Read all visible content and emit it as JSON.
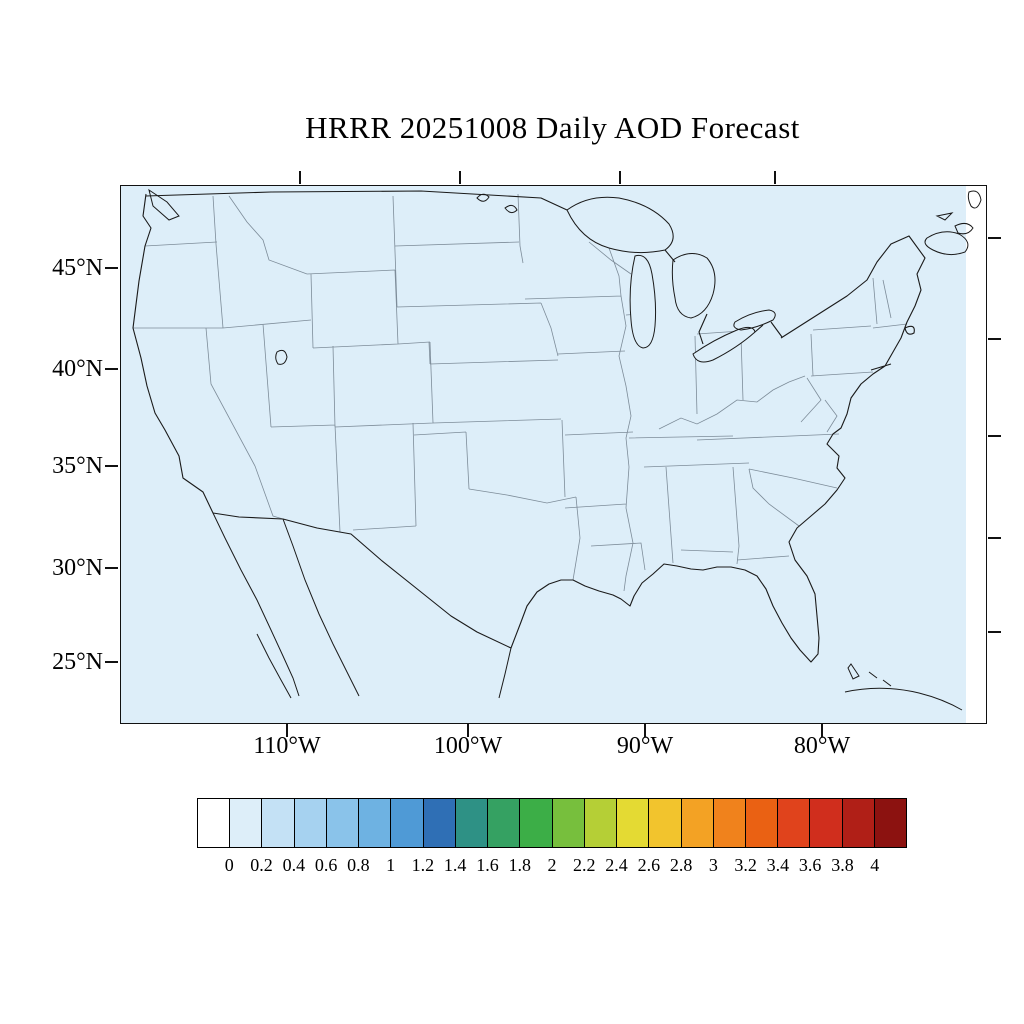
{
  "title": "HRRR 20251008 Daily AOD Forecast",
  "axes": {
    "lat": [
      "45°N",
      "40°N",
      "35°N",
      "30°N",
      "25°N"
    ],
    "lon": [
      "110°W",
      "100°W",
      "90°W",
      "80°W"
    ]
  },
  "chart_data": {
    "type": "heatmap",
    "title": "HRRR 20251008 Daily AOD Forecast",
    "field": "Aerosol Optical Depth (AOD) daily forecast",
    "geo_region": "Contiguous United States with state boundaries, coastlines and Great Lakes",
    "field_reading": "Entire map domain is shaded in the lowest AOD bin (approximately 0 to 0.2); no elevated AOD features are visible",
    "x_axis": {
      "label": "",
      "tick_labels": [
        "110°W",
        "100°W",
        "90°W",
        "80°W"
      ]
    },
    "y_axis": {
      "label": "",
      "tick_labels": [
        "45°N",
        "40°N",
        "35°N",
        "30°N",
        "25°N"
      ]
    },
    "colorbar": {
      "min": 0,
      "max": 4,
      "interval": 0.2,
      "tick_labels": [
        "0",
        "0.2",
        "0.4",
        "0.6",
        "0.8",
        "1",
        "1.2",
        "1.4",
        "1.6",
        "1.8",
        "2",
        "2.2",
        "2.4",
        "2.6",
        "2.8",
        "3",
        "3.2",
        "3.4",
        "3.6",
        "3.8",
        "4"
      ],
      "colors": [
        "#ffffff",
        "#ddeef9",
        "#c4e1f5",
        "#a6d2f0",
        "#8ac3ea",
        "#6eb2e2",
        "#4f9ad6",
        "#2f6fb5",
        "#2e9185",
        "#35a162",
        "#3cae47",
        "#77bf3d",
        "#b5cf36",
        "#e4da33",
        "#f2c42d",
        "#f3a224",
        "#f0821c",
        "#ea6113",
        "#e0431c",
        "#d02e1d",
        "#b01f17",
        "#8c1210"
      ]
    }
  }
}
